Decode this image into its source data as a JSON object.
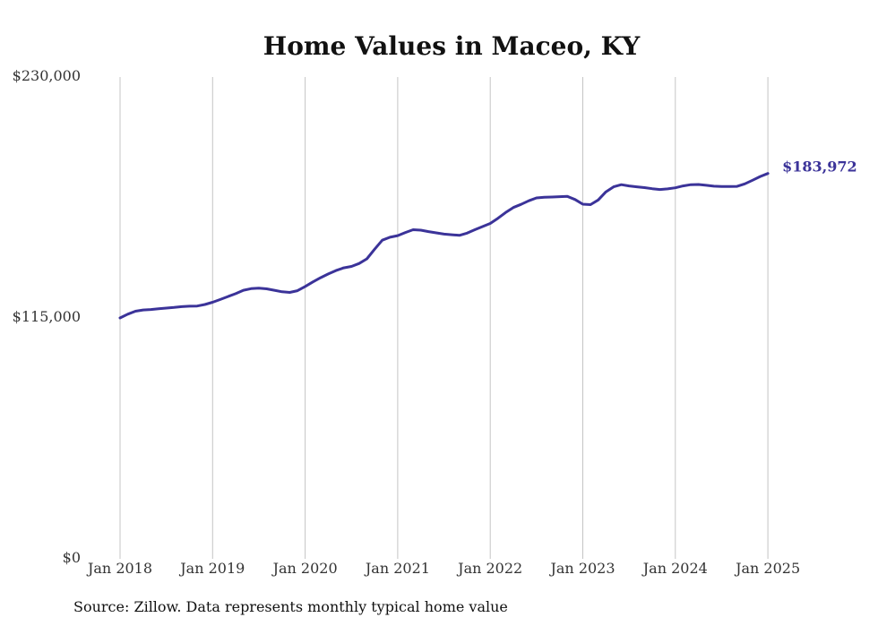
{
  "chart_data": {
    "type": "line",
    "title": "Home Values in Maceo, KY",
    "xlabel": "",
    "ylabel": "",
    "ylim": [
      0,
      230000
    ],
    "y_ticks": [
      {
        "value": 0,
        "label": "$0"
      },
      {
        "value": 115000,
        "label": "$115,000"
      },
      {
        "value": 230000,
        "label": "$230,000"
      }
    ],
    "x_ticks": [
      "Jan 2018",
      "Jan 2019",
      "Jan 2020",
      "Jan 2021",
      "Jan 2022",
      "Jan 2023",
      "Jan 2024",
      "Jan 2025"
    ],
    "x_start": "2018-01",
    "grid": "vertical",
    "line_color": "#3b3399",
    "end_label": "$183,972",
    "series": [
      {
        "values": [
          115000,
          116800,
          118200,
          118800,
          119000,
          119400,
          119700,
          120000,
          120400,
          120600,
          120700,
          121400,
          122500,
          123800,
          125200,
          126600,
          128200,
          129000,
          129200,
          128900,
          128200,
          127500,
          127200,
          128000,
          130000,
          132200,
          134200,
          136000,
          137600,
          138900,
          139600,
          141000,
          143200,
          147800,
          152100,
          153500,
          154300,
          155800,
          157100,
          156900,
          156200,
          155600,
          155000,
          154700,
          154400,
          155500,
          157100,
          158600,
          160100,
          162600,
          165300,
          167700,
          169200,
          170900,
          172300,
          172600,
          172700,
          172900,
          173000,
          171500,
          169300,
          169100,
          171300,
          175200,
          177600,
          178600,
          178000,
          177600,
          177200,
          176700,
          176300,
          176600,
          177100,
          178000,
          178600,
          178700,
          178300,
          177900,
          177700,
          177700,
          177800,
          179000,
          180700,
          182500,
          183972
        ]
      }
    ]
  },
  "footer": {
    "source": "Source: Zillow. Data represents monthly typical home value"
  }
}
